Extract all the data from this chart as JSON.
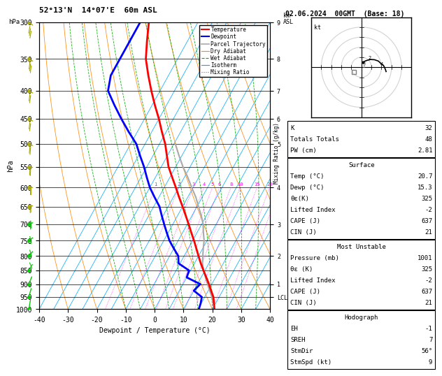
{
  "title_left": "52°13'N  14°07'E  60m ASL",
  "title_right": "02.06.2024  00GMT  (Base: 18)",
  "xlabel": "Dewpoint / Temperature (°C)",
  "ylabel_left": "hPa",
  "pressure_levels": [
    300,
    350,
    400,
    450,
    500,
    550,
    600,
    650,
    700,
    750,
    800,
    850,
    900,
    950,
    1000
  ],
  "temp_xlim": [
    -40,
    40
  ],
  "background": "#ffffff",
  "plot_bg": "#ffffff",
  "temp_color": "#ff0000",
  "dewp_color": "#0000ff",
  "parcel_color": "#aaaaaa",
  "dry_adiabat_color": "#ff8800",
  "wet_adiabat_color": "#00aa00",
  "isotherm_color": "#00aaff",
  "mixing_ratio_color": "#ff00ff",
  "mixing_ratio_values": [
    1,
    2,
    3,
    4,
    5,
    6,
    8,
    10,
    15,
    20,
    25
  ],
  "isotherm_values": [
    -40,
    -35,
    -30,
    -25,
    -20,
    -15,
    -10,
    -5,
    0,
    5,
    10,
    15,
    20,
    25,
    30,
    35,
    40
  ],
  "dry_adiabat_values": [
    -40,
    -30,
    -20,
    -10,
    0,
    10,
    20,
    30,
    40,
    50,
    60,
    70
  ],
  "wet_adiabat_values": [
    -10,
    -5,
    0,
    5,
    10,
    15,
    20,
    25,
    30,
    35,
    40
  ],
  "stats_k": 32,
  "stats_tt": 48,
  "stats_pw": "2.81",
  "stats_temp": "20.7",
  "stats_dewp": "15.3",
  "stats_thetas": 325,
  "stats_li": -2,
  "stats_cape": 637,
  "stats_cin": 21,
  "stats_mu_pressure": 1001,
  "stats_mu_thetas": 325,
  "stats_mu_li": -2,
  "stats_mu_cape": 637,
  "stats_mu_cin": 21,
  "stats_eh": -1,
  "stats_sreh": 7,
  "stats_stmdir": "56°",
  "stats_stmspd": 9,
  "temp_profile_p": [
    1000,
    975,
    950,
    925,
    900,
    875,
    850,
    825,
    800,
    775,
    750,
    725,
    700,
    675,
    650,
    625,
    600,
    575,
    550,
    525,
    500,
    475,
    450,
    425,
    400,
    375,
    350,
    325,
    300
  ],
  "temp_profile_t": [
    20.7,
    19.4,
    18.0,
    16.0,
    14.0,
    11.8,
    9.5,
    7.2,
    5.0,
    2.8,
    0.5,
    -2.0,
    -4.5,
    -7.2,
    -10.0,
    -13.0,
    -16.0,
    -19.2,
    -22.5,
    -25.2,
    -28.0,
    -31.5,
    -35.0,
    -39.0,
    -43.0,
    -47.0,
    -51.0,
    -54.0,
    -57.0
  ],
  "dewp_profile_p": [
    1000,
    975,
    950,
    925,
    900,
    875,
    850,
    825,
    800,
    775,
    750,
    725,
    700,
    675,
    650,
    625,
    600,
    575,
    550,
    525,
    500,
    475,
    450,
    425,
    400,
    375,
    350,
    325,
    300
  ],
  "dewp_profile_t": [
    15.3,
    14.8,
    14.0,
    10.0,
    11.0,
    5.0,
    4.5,
    -0.5,
    -2.0,
    -5.0,
    -8.0,
    -10.5,
    -13.0,
    -15.5,
    -18.0,
    -21.5,
    -25.0,
    -28.0,
    -31.0,
    -34.5,
    -38.0,
    -43.0,
    -48.0,
    -53.0,
    -58.0,
    -60.0,
    -60.0,
    -60.0,
    -60.0
  ],
  "parcel_profile_p": [
    1000,
    975,
    950,
    925,
    900,
    875,
    850,
    825,
    800,
    775,
    750,
    725,
    700,
    675,
    650,
    625,
    600,
    575,
    550,
    525,
    500
  ],
  "parcel_profile_t": [
    20.7,
    19.2,
    17.5,
    15.5,
    13.5,
    11.5,
    9.5,
    7.8,
    6.5,
    5.2,
    4.0,
    2.2,
    0.5,
    -1.8,
    -4.5,
    -7.2,
    -10.5,
    -13.8,
    -17.5,
    -21.0,
    -24.5
  ],
  "wind_p_levels": [
    1000,
    950,
    900,
    850,
    800,
    750,
    700,
    650,
    600,
    550,
    500,
    450,
    400,
    350,
    300
  ],
  "wind_dirs": [
    200,
    210,
    220,
    230,
    240,
    250,
    260,
    265,
    270,
    275,
    280,
    285,
    285,
    285,
    290
  ],
  "wind_spds": [
    5,
    7,
    9,
    12,
    15,
    18,
    20,
    22,
    23,
    24,
    25,
    27,
    28,
    30,
    32
  ],
  "wind_color_green": "#00cc00",
  "wind_color_yellow": "#aaaa00",
  "lcl_pressure": 955
}
